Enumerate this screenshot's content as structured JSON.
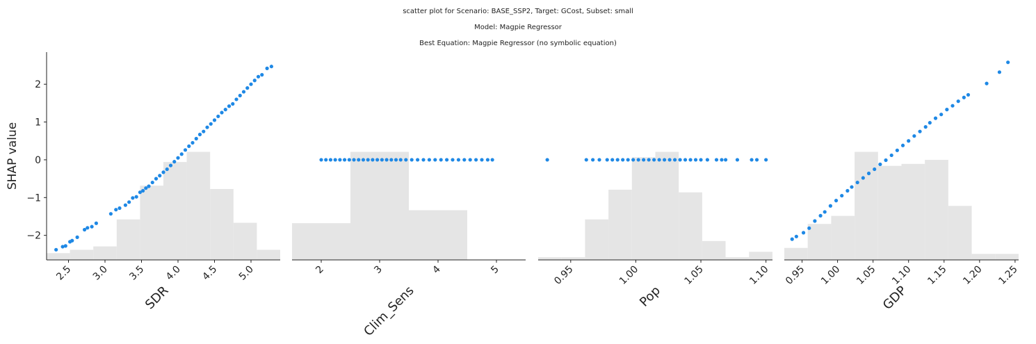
{
  "titles": {
    "line1": "scatter plot for Scenario: BASE_SSP2, Target: GCost, Subset: small",
    "line2": "Model: Magpie Regressor",
    "line3": "Best Equation: Magpie Regressor (no symbolic equation)"
  },
  "colors": {
    "point": "#1e88e5",
    "histogram": "#e5e5e5",
    "axis": "#222222"
  },
  "chart_data": [
    {
      "type": "scatter",
      "xlabel": "SDR",
      "ylabel": "SHAP value",
      "xlim": [
        2.2,
        5.4
      ],
      "ylim": [
        -2.65,
        2.85
      ],
      "xticks": [
        2.5,
        3.0,
        3.5,
        4.0,
        4.5,
        5.0
      ],
      "xtick_labels": [
        "2.5",
        "3.0",
        "3.5",
        "4.0",
        "4.5",
        "5.0"
      ],
      "yticks": [
        -2,
        -1,
        0,
        1,
        2
      ],
      "ytick_labels": [
        "−2",
        "−1",
        "0",
        "1",
        "2"
      ],
      "x": [
        2.33,
        2.42,
        2.46,
        2.52,
        2.55,
        2.62,
        2.72,
        2.76,
        2.82,
        2.88,
        3.08,
        3.15,
        3.2,
        3.28,
        3.33,
        3.38,
        3.43,
        3.48,
        3.52,
        3.56,
        3.6,
        3.65,
        3.7,
        3.75,
        3.8,
        3.85,
        3.9,
        3.95,
        4.0,
        4.05,
        4.1,
        4.15,
        4.2,
        4.25,
        4.3,
        4.35,
        4.4,
        4.45,
        4.5,
        4.55,
        4.6,
        4.65,
        4.7,
        4.75,
        4.8,
        4.85,
        4.9,
        4.95,
        5.0,
        5.05,
        5.1,
        5.15,
        5.22,
        5.28
      ],
      "y": [
        -2.38,
        -2.3,
        -2.28,
        -2.17,
        -2.14,
        -2.05,
        -1.85,
        -1.8,
        -1.77,
        -1.68,
        -1.43,
        -1.32,
        -1.28,
        -1.2,
        -1.12,
        -1.01,
        -0.98,
        -0.86,
        -0.82,
        -0.75,
        -0.7,
        -0.6,
        -0.5,
        -0.42,
        -0.33,
        -0.25,
        -0.15,
        -0.05,
        0.05,
        0.15,
        0.26,
        0.36,
        0.45,
        0.56,
        0.67,
        0.75,
        0.86,
        0.95,
        1.05,
        1.15,
        1.25,
        1.33,
        1.42,
        1.48,
        1.6,
        1.7,
        1.8,
        1.9,
        2.0,
        2.1,
        2.2,
        2.25,
        2.42,
        2.47
      ],
      "histogram": {
        "edges": [
          2.2,
          2.52,
          2.84,
          3.16,
          3.48,
          3.8,
          4.12,
          4.44,
          4.76,
          5.08,
          5.4
        ],
        "counts": [
          2,
          3,
          4,
          12,
          22,
          29,
          32,
          21,
          11,
          3
        ]
      }
    },
    {
      "type": "scatter",
      "xlabel": "Clim_Sens",
      "xlim": [
        1.5,
        5.5
      ],
      "ylim": [
        -2.65,
        2.85
      ],
      "xticks": [
        2,
        3,
        4,
        5
      ],
      "xtick_labels": [
        "2",
        "3",
        "4",
        "5"
      ],
      "x": [
        2.0,
        2.08,
        2.16,
        2.24,
        2.32,
        2.4,
        2.48,
        2.56,
        2.64,
        2.72,
        2.8,
        2.88,
        2.96,
        3.04,
        3.12,
        3.2,
        3.28,
        3.36,
        3.45,
        3.55,
        3.65,
        3.75,
        3.85,
        3.95,
        4.05,
        4.15,
        4.25,
        4.35,
        4.45,
        4.55,
        4.65,
        4.75,
        4.85,
        4.93
      ],
      "y": [
        0,
        0,
        0,
        0,
        0,
        0,
        0,
        0,
        0,
        0,
        0,
        0,
        0,
        0,
        0,
        0,
        0,
        0,
        0,
        0,
        0,
        0,
        0,
        0,
        0,
        0,
        0,
        0,
        0,
        0,
        0,
        0,
        0,
        0
      ],
      "histogram": {
        "edges": [
          1.5,
          2.5,
          3.5,
          4.5,
          5.5
        ],
        "counts": [
          17,
          50,
          23,
          0
        ]
      }
    },
    {
      "type": "scatter",
      "xlabel": "Pop",
      "xlim": [
        0.925,
        1.105
      ],
      "ylim": [
        -2.65,
        2.85
      ],
      "xticks": [
        0.95,
        1.0,
        1.05,
        1.1
      ],
      "xtick_labels": [
        "0.95",
        "1.00",
        "1.05",
        "1.10"
      ],
      "x": [
        0.932,
        0.962,
        0.967,
        0.972,
        0.978,
        0.982,
        0.986,
        0.99,
        0.994,
        0.998,
        1.002,
        1.006,
        1.01,
        1.014,
        1.018,
        1.022,
        1.026,
        1.03,
        1.034,
        1.038,
        1.042,
        1.046,
        1.05,
        1.055,
        1.062,
        1.066,
        1.069,
        1.078,
        1.089,
        1.093,
        1.1
      ],
      "y": [
        0,
        0,
        0,
        0,
        0,
        0,
        0,
        0,
        0,
        0,
        0,
        0,
        0,
        0,
        0,
        0,
        0,
        0,
        0,
        0,
        0,
        0,
        0,
        0,
        0,
        0,
        0,
        0,
        0,
        0,
        0
      ],
      "histogram": {
        "edges": [
          0.925,
          0.943,
          0.961,
          0.979,
          0.997,
          1.015,
          1.033,
          1.051,
          1.069,
          1.087,
          1.105
        ],
        "counts": [
          1,
          1,
          15,
          26,
          38,
          40,
          25,
          7,
          1,
          3
        ]
      }
    },
    {
      "type": "scatter",
      "xlabel": "GDP",
      "xlim": [
        0.925,
        1.255
      ],
      "ylim": [
        -2.65,
        2.85
      ],
      "xticks": [
        0.95,
        1.0,
        1.05,
        1.1,
        1.15,
        1.2,
        1.25
      ],
      "xtick_labels": [
        "0.95",
        "1.00",
        "1.05",
        "1.10",
        "1.15",
        "1.20",
        "1.25"
      ],
      "x": [
        0.936,
        0.942,
        0.952,
        0.96,
        0.968,
        0.976,
        0.982,
        0.99,
        0.998,
        1.006,
        1.014,
        1.02,
        1.028,
        1.036,
        1.044,
        1.052,
        1.06,
        1.068,
        1.076,
        1.084,
        1.092,
        1.1,
        1.108,
        1.116,
        1.124,
        1.13,
        1.138,
        1.146,
        1.154,
        1.162,
        1.17,
        1.178,
        1.184,
        1.21,
        1.228,
        1.24
      ],
      "y": [
        -2.1,
        -2.03,
        -1.93,
        -1.81,
        -1.62,
        -1.48,
        -1.38,
        -1.22,
        -1.08,
        -0.95,
        -0.82,
        -0.72,
        -0.6,
        -0.48,
        -0.36,
        -0.25,
        -0.12,
        -0.01,
        0.12,
        0.25,
        0.38,
        0.5,
        0.63,
        0.75,
        0.87,
        0.98,
        1.1,
        1.2,
        1.33,
        1.43,
        1.55,
        1.65,
        1.72,
        2.02,
        2.32,
        2.58
      ],
      "histogram": {
        "edges": [
          0.925,
          0.958,
          0.991,
          1.024,
          1.057,
          1.09,
          1.123,
          1.156,
          1.189,
          1.222,
          1.255
        ],
        "counts": [
          6,
          18,
          22,
          54,
          47,
          48,
          50,
          27,
          3,
          3
        ]
      }
    }
  ]
}
